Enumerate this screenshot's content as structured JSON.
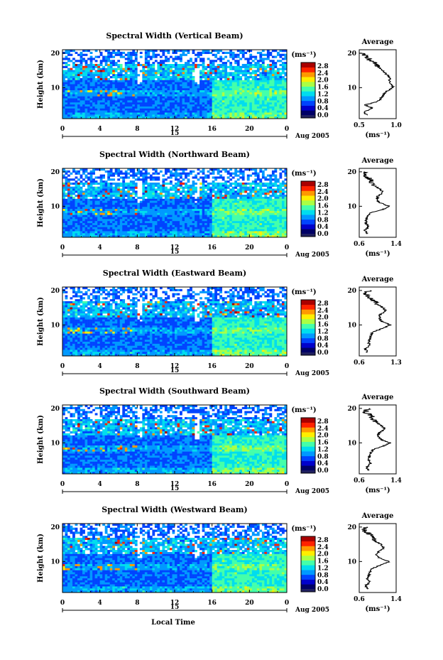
{
  "figure": {
    "xlabel": "Local Time",
    "panel_xlabel_shown_on_last": true
  },
  "chart_data": [
    {
      "type": "heatmap",
      "title": "Spectral Width (Vertical Beam)",
      "ylabel": "Height (km)",
      "xlabel": "",
      "xlim": [
        0,
        24
      ],
      "ylim": [
        1,
        21
      ],
      "xticks": [
        "0",
        "4",
        "8",
        "12",
        "16",
        "20",
        "0"
      ],
      "yticks": [
        "20",
        "10"
      ],
      "date_marker": "15",
      "date_label": "Aug 2005",
      "colorbar": {
        "unit": "(ms⁻¹)",
        "ticks": [
          "0.0",
          "0.4",
          "0.8",
          "1.2",
          "1.6",
          "2.0",
          "2.4",
          "2.8"
        ],
        "range": [
          0,
          3.0
        ]
      },
      "average": {
        "title": "Average",
        "xlabel": "(ms⁻¹)",
        "xticks": [
          "0.5",
          "1.0"
        ],
        "xlim": [
          0.5,
          1.1
        ],
        "yticks": [
          "20",
          "10"
        ],
        "ylim": [
          1,
          21
        ],
        "profile_heights": [
          2,
          3,
          4,
          5,
          6,
          7,
          8,
          9,
          10,
          11,
          12,
          13,
          14,
          15,
          16,
          17,
          18,
          19,
          20
        ],
        "profile_values": [
          0.62,
          0.58,
          0.72,
          0.6,
          0.8,
          0.86,
          0.9,
          0.95,
          1.05,
          1.03,
          0.98,
          1.0,
          0.93,
          0.88,
          0.82,
          0.75,
          0.68,
          0.6,
          0.55
        ]
      }
    },
    {
      "type": "heatmap",
      "title": "Spectral Width (Northward Beam)",
      "ylabel": "Height (km)",
      "xlabel": "",
      "xlim": [
        0,
        24
      ],
      "ylim": [
        1,
        21
      ],
      "xticks": [
        "0",
        "4",
        "8",
        "12",
        "16",
        "20",
        "0"
      ],
      "yticks": [
        "20",
        "10"
      ],
      "date_marker": "15",
      "date_label": "Aug 2005",
      "colorbar": {
        "unit": "(ms⁻¹)",
        "ticks": [
          "0.0",
          "0.4",
          "0.8",
          "1.2",
          "1.6",
          "2.0",
          "2.4",
          "2.8"
        ],
        "range": [
          0,
          3.0
        ]
      },
      "average": {
        "title": "Average",
        "xlabel": "(ms⁻¹)",
        "xticks": [
          "0.6",
          "1.4"
        ],
        "xlim": [
          0.6,
          1.4
        ],
        "yticks": [
          "20",
          "10"
        ],
        "ylim": [
          1,
          21
        ],
        "profile_heights": [
          2,
          3,
          4,
          5,
          6,
          7,
          8,
          9,
          10,
          11,
          12,
          13,
          14,
          15,
          16,
          17,
          18,
          19,
          20
        ],
        "profile_values": [
          0.78,
          0.72,
          0.8,
          0.76,
          0.74,
          0.78,
          0.82,
          1.1,
          1.25,
          1.05,
          0.98,
          1.0,
          1.12,
          1.05,
          0.92,
          0.88,
          0.82,
          0.7,
          0.75
        ]
      }
    },
    {
      "type": "heatmap",
      "title": "Spectral Width (Eastward Beam)",
      "ylabel": "Height (km)",
      "xlabel": "",
      "xlim": [
        0,
        24
      ],
      "ylim": [
        1,
        21
      ],
      "xticks": [
        "0",
        "4",
        "8",
        "12",
        "16",
        "20",
        "0"
      ],
      "yticks": [
        "20",
        "10"
      ],
      "date_marker": "15",
      "date_label": "Aug 2005",
      "colorbar": {
        "unit": "(ms⁻¹)",
        "ticks": [
          "0.0",
          "0.4",
          "0.8",
          "1.2",
          "1.6",
          "2.0",
          "2.4",
          "2.8"
        ],
        "range": [
          0,
          3.0
        ]
      },
      "average": {
        "title": "Average",
        "xlabel": "",
        "xticks": [
          "0.6",
          "1.3"
        ],
        "xlim": [
          0.6,
          1.3
        ],
        "yticks": [
          "20",
          "10"
        ],
        "ylim": [
          1,
          21
        ],
        "profile_heights": [
          2,
          3,
          4,
          5,
          6,
          7,
          8,
          9,
          10,
          11,
          12,
          13,
          14,
          15,
          16,
          17,
          18,
          19,
          20
        ],
        "profile_values": [
          0.75,
          0.72,
          0.8,
          0.78,
          0.8,
          0.82,
          0.86,
          1.05,
          1.2,
          1.02,
          0.98,
          1.0,
          1.1,
          1.06,
          0.94,
          0.88,
          0.8,
          0.72,
          0.78
        ]
      }
    },
    {
      "type": "heatmap",
      "title": "Spectral Width (Southward Beam)",
      "ylabel": "Height (km)",
      "xlabel": "",
      "xlim": [
        0,
        24
      ],
      "ylim": [
        1,
        21
      ],
      "xticks": [
        "0",
        "4",
        "8",
        "12",
        "16",
        "20",
        "0"
      ],
      "yticks": [
        "20",
        "10"
      ],
      "date_marker": "15",
      "date_label": "Aug 2005",
      "colorbar": {
        "unit": "(ms⁻¹)",
        "ticks": [
          "0.0",
          "0.4",
          "0.8",
          "1.2",
          "1.6",
          "2.0",
          "2.4",
          "2.8"
        ],
        "range": [
          0,
          3.0
        ]
      },
      "average": {
        "title": "Average",
        "xlabel": "(ms⁻¹)",
        "xticks": [
          "0.6",
          "1.4"
        ],
        "xlim": [
          0.6,
          1.4
        ],
        "yticks": [
          "20",
          "10"
        ],
        "ylim": [
          1,
          21
        ],
        "profile_heights": [
          2,
          3,
          4,
          5,
          6,
          7,
          8,
          9,
          10,
          11,
          12,
          13,
          14,
          15,
          16,
          17,
          18,
          19,
          20
        ],
        "profile_values": [
          0.8,
          0.76,
          0.84,
          0.8,
          0.82,
          0.84,
          0.9,
          1.1,
          1.28,
          1.06,
          1.0,
          1.04,
          1.16,
          1.08,
          0.96,
          0.9,
          0.84,
          0.72,
          0.8
        ]
      }
    },
    {
      "type": "heatmap",
      "title": "Spectral Width (Westward Beam)",
      "ylabel": "Height (km)",
      "xlabel": "Local Time",
      "xlim": [
        0,
        24
      ],
      "ylim": [
        1,
        21
      ],
      "xticks": [
        "0",
        "4",
        "8",
        "12",
        "16",
        "20",
        "0"
      ],
      "yticks": [
        "20",
        "10"
      ],
      "date_marker": "15",
      "date_label": "Aug 2005",
      "colorbar": {
        "unit": "(ms⁻¹)",
        "ticks": [
          "0.0",
          "0.4",
          "0.8",
          "1.2",
          "1.6",
          "2.0",
          "2.4",
          "2.8"
        ],
        "range": [
          0,
          3.0
        ]
      },
      "average": {
        "title": "Average",
        "xlabel": "(ms⁻¹)",
        "xticks": [
          "0.6",
          "1.4"
        ],
        "xlim": [
          0.6,
          1.4
        ],
        "yticks": [
          "20",
          "10"
        ],
        "ylim": [
          1,
          21
        ],
        "profile_heights": [
          2,
          3,
          4,
          5,
          6,
          7,
          8,
          9,
          10,
          11,
          12,
          13,
          14,
          15,
          16,
          17,
          18,
          19,
          20
        ],
        "profile_values": [
          0.78,
          0.74,
          0.82,
          0.78,
          0.8,
          0.84,
          0.88,
          1.08,
          1.26,
          1.04,
          0.98,
          1.02,
          1.14,
          1.06,
          0.94,
          0.88,
          0.82,
          0.7,
          0.76
        ]
      }
    }
  ],
  "colors": {
    "scale": [
      "#000066",
      "#0000cc",
      "#0044ff",
      "#0099ff",
      "#00ddee",
      "#44ffaa",
      "#aaff44",
      "#ffee00",
      "#ff9900",
      "#ff2200",
      "#aa0000"
    ],
    "cbar_low_box": "#202060"
  }
}
